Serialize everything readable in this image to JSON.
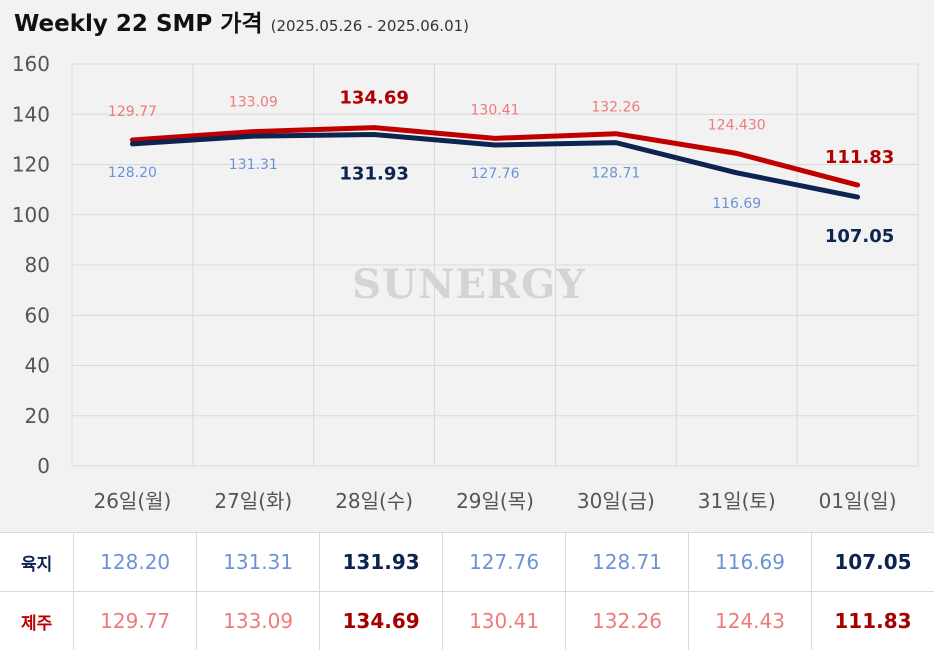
{
  "title": {
    "main": "Weekly 22 SMP 가격",
    "sub": "(2025.05.26 - 2025.06.01)"
  },
  "watermark": "SUNERGY",
  "colors": {
    "land_line": "#0d2350",
    "land_label": "#6b93d6",
    "jeju_line": "#c00000",
    "jeju_label": "#ee7b7b"
  },
  "chart_data": {
    "type": "line",
    "categories": [
      "26일(월)",
      "27일(화)",
      "28일(수)",
      "29일(목)",
      "30일(금)",
      "31일(토)",
      "01일(일)"
    ],
    "ylim": [
      0,
      160
    ],
    "yticks": [
      "0",
      "20",
      "40",
      "60",
      "80",
      "100",
      "120",
      "140",
      "160"
    ],
    "grid": true,
    "series": [
      {
        "name": "육지",
        "values": [
          128.2,
          131.31,
          131.93,
          127.76,
          128.71,
          116.69,
          107.05
        ],
        "labels": [
          "128.20",
          "131.31",
          "131.93",
          "127.76",
          "128.71",
          "116.69",
          "107.05"
        ],
        "highlight": [
          false,
          false,
          true,
          false,
          false,
          false,
          true
        ]
      },
      {
        "name": "제주",
        "values": [
          129.77,
          133.09,
          134.69,
          130.41,
          132.26,
          124.43,
          111.83
        ],
        "labels": [
          "129.77",
          "133.09",
          "134.69",
          "130.41",
          "132.26",
          "124.430",
          "111.83"
        ],
        "highlight": [
          false,
          false,
          true,
          false,
          false,
          false,
          true
        ]
      }
    ]
  },
  "table": {
    "rows": [
      {
        "label": "육지",
        "values": [
          "128.20",
          "131.31",
          "131.93",
          "127.76",
          "128.71",
          "116.69",
          "107.05"
        ]
      },
      {
        "label": "제주",
        "values": [
          "129.77",
          "133.09",
          "134.69",
          "130.41",
          "132.26",
          "124.43",
          "111.83"
        ]
      }
    ]
  }
}
